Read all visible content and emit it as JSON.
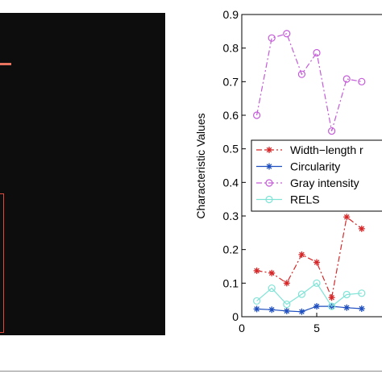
{
  "chart_data": {
    "type": "line",
    "ylabel": "Characteristic Values",
    "xlabel": "",
    "ylim": [
      0,
      0.9
    ],
    "xlim": [
      0,
      10
    ],
    "x_ticks": [
      0,
      5
    ],
    "y_ticks": [
      0,
      0.1,
      0.2,
      0.3,
      0.4,
      0.5,
      0.6,
      0.7,
      0.8,
      0.9
    ],
    "x_tick_labels": [
      "0",
      "5"
    ],
    "y_tick_labels": [
      "0",
      "0.1",
      "0.2",
      "0.3",
      "0.4",
      "0.5",
      "0.6",
      "0.7",
      "0.8",
      "0.9"
    ],
    "grid": false,
    "legend_position": "center-right",
    "series": [
      {
        "name": "Width–length ratio",
        "legend_label": "Width−length r",
        "color": "#d62728",
        "marker": "star",
        "linestyle": "dashdot",
        "x": [
          1,
          2,
          3,
          4,
          5,
          6,
          7,
          8
        ],
        "y": [
          0.137,
          0.13,
          0.1,
          0.185,
          0.162,
          0.057,
          0.297,
          0.262
        ]
      },
      {
        "name": "Circularity",
        "legend_label": "Circularity",
        "color": "#1f4fbf",
        "marker": "star",
        "linestyle": "solid",
        "x": [
          1,
          2,
          3,
          4,
          5,
          6,
          7,
          8
        ],
        "y": [
          0.023,
          0.021,
          0.017,
          0.015,
          0.031,
          0.031,
          0.027,
          0.024
        ]
      },
      {
        "name": "Gray intensity",
        "legend_label": "Gray intensity",
        "color": "#c45bd8",
        "marker": "circle",
        "linestyle": "dashdot",
        "x": [
          1,
          2,
          3,
          4,
          5,
          6,
          7,
          8
        ],
        "y": [
          0.6,
          0.83,
          0.843,
          0.722,
          0.786,
          0.553,
          0.708,
          0.7
        ]
      },
      {
        "name": "RELS",
        "legend_label": "RELS",
        "color": "#7fe3d6",
        "marker": "circle",
        "linestyle": "solid",
        "x": [
          1,
          2,
          3,
          4,
          5,
          6,
          7,
          8
        ],
        "y": [
          0.047,
          0.085,
          0.037,
          0.067,
          0.1,
          0.031,
          0.066,
          0.07
        ]
      }
    ]
  }
}
